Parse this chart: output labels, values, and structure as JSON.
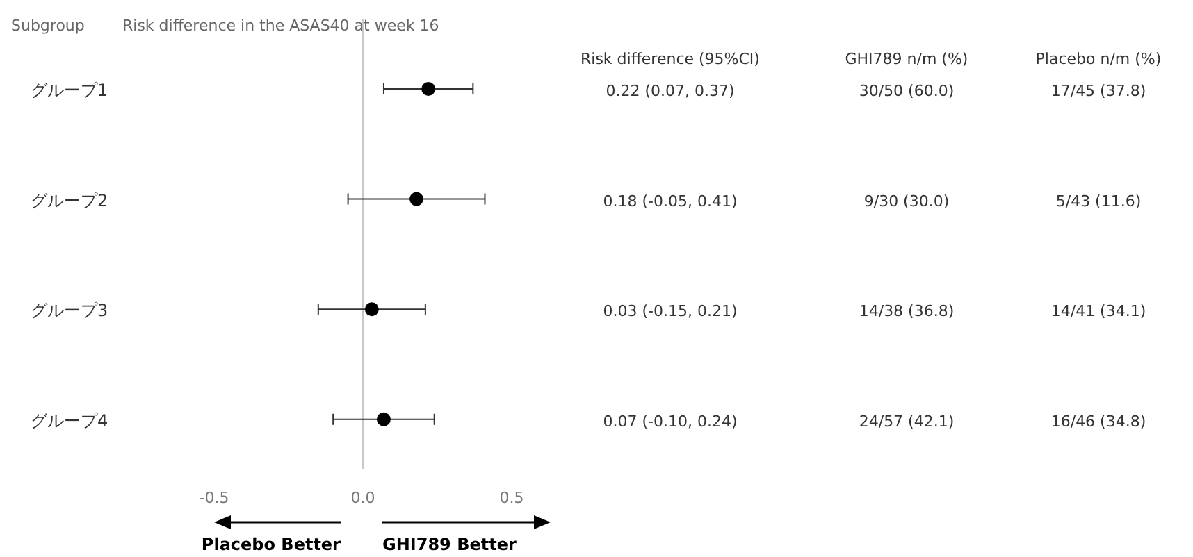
{
  "chart_data": {
    "type": "scatter",
    "orientation": "horizontal",
    "title": "Risk difference in the ASAS40 at week 16",
    "ylabel": "Subgroup",
    "categories": [
      "グループ1",
      "グループ2",
      "グループ3",
      "グループ4"
    ],
    "values": [
      0.22,
      0.18,
      0.03,
      0.07
    ],
    "errors": [
      0.15,
      0.23,
      0.18,
      0.17
    ],
    "color": "#000000",
    "marker": "circle",
    "value_labels": [
      "0.22 (0.07, 0.37)",
      "0.18 (-0.05, 0.41)",
      "0.03 (-0.15, 0.21)",
      "0.07 (-0.10, 0.24)"
    ],
    "xlim": [
      -0.5,
      0.5
    ],
    "xticks": [
      -0.5,
      {
        "value": 0,
        "label": "0.0"
      },
      0.5
    ],
    "ref_lines": [
      {
        "axis": "x",
        "value": 0,
        "color": "#c8c8c8"
      }
    ],
    "annotations": [
      "Risk difference (95%CI)",
      "GHI789 n/m (%)",
      "Placebo n/m (%)",
      "Placebo Better",
      "GHI789 Better",
      "30/50 (60.0)",
      "9/30 (30.0)",
      "14/38 (36.8)",
      "24/57 (42.1)",
      "17/45 (37.8)",
      "5/43 (11.6)",
      "14/41 (34.1)",
      "16/46 (34.8)"
    ],
    "grid": false
  }
}
